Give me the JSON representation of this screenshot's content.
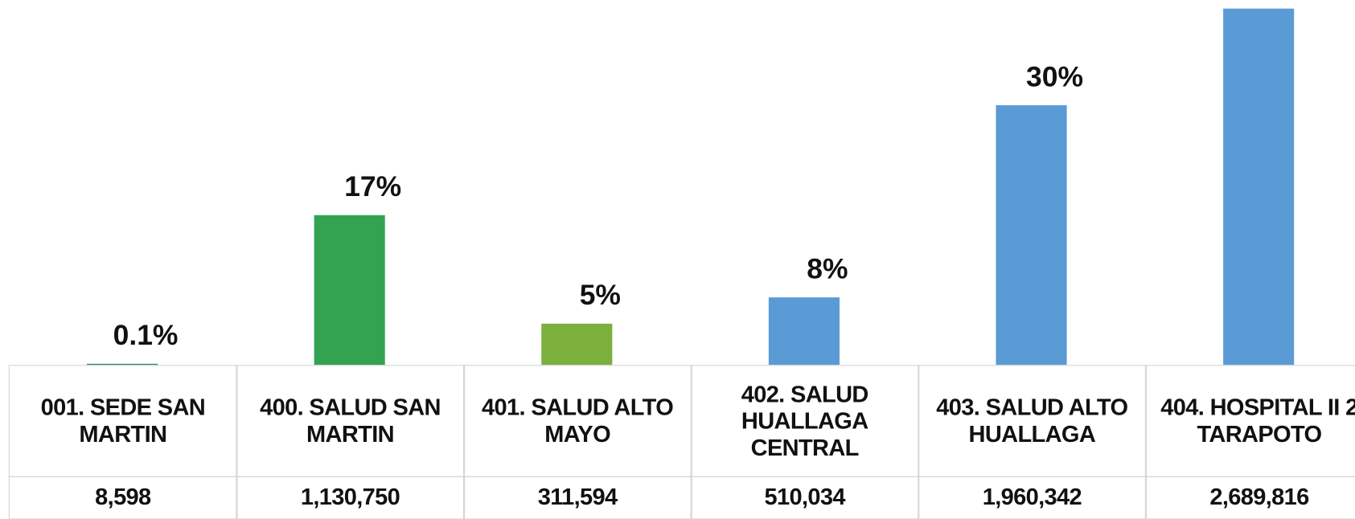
{
  "chart_data": {
    "type": "bar",
    "categories": [
      "001. SEDE SAN MARTIN",
      "400. SALUD SAN MARTIN",
      "401. SALUD ALTO MAYO",
      "402. SALUD HUALLAGA CENTRAL",
      "403. SALUD ALTO HUALLAGA",
      "404. HOSPITAL II 2 TARAPOTO"
    ],
    "values": [
      8598,
      1130750,
      311594,
      510034,
      1960342,
      2689816
    ],
    "value_labels": [
      "8,598",
      "1,130,750",
      "311,594",
      "510,034",
      "1,960,342",
      "2,689,816"
    ],
    "percent_labels": [
      "0.1%",
      "17%",
      "5%",
      "8%",
      "30%",
      null
    ],
    "colors": [
      "#1b8a6b",
      "#33a352",
      "#7cb03c",
      "#5b9bd5",
      "#5b9bd5",
      "#5b9bd5"
    ],
    "ylim": [
      0,
      2700000
    ]
  }
}
